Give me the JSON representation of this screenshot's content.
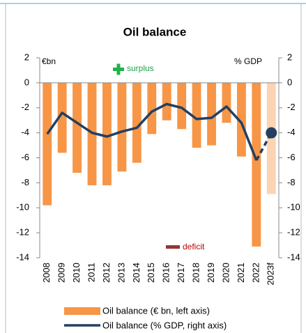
{
  "chart_data": {
    "type": "bar_line",
    "title": "Oil balance",
    "y_label": "€bn",
    "y2_label": "% GDP",
    "categories": [
      "2008",
      "2009",
      "2010",
      "2011",
      "2012",
      "2013",
      "2014",
      "2015",
      "2016",
      "2017",
      "2018",
      "2019",
      "2020",
      "2021",
      "2022",
      "2023f"
    ],
    "forecast": [
      false,
      false,
      false,
      false,
      false,
      false,
      false,
      false,
      false,
      false,
      false,
      false,
      false,
      false,
      false,
      true
    ],
    "series": [
      {
        "name": "Oil balance (€ bn, left axis)",
        "type": "bar",
        "color": "#f79646",
        "forecast_color": "#fbd4b4",
        "values": [
          -9.8,
          -5.6,
          -7.2,
          -8.2,
          -8.2,
          -7.1,
          -6.4,
          -4.1,
          -3.0,
          -3.7,
          -5.2,
          -5.0,
          -3.2,
          -5.9,
          -13.1,
          -8.9
        ]
      },
      {
        "name": "Oil balance (% GDP, right axis)",
        "type": "line",
        "axis": "y2",
        "color": "#243f60",
        "values": [
          -4.1,
          -2.4,
          -3.2,
          -4.0,
          -4.3,
          -3.9,
          -3.6,
          -2.3,
          -1.7,
          -2.0,
          -2.9,
          -2.8,
          -1.9,
          -3.2,
          -6.2,
          -4.0
        ]
      }
    ],
    "ylim": [
      -14,
      2
    ],
    "yticks": [
      2,
      0,
      -2,
      -4,
      -6,
      -8,
      -10,
      -12,
      -14
    ],
    "y2lim": [
      -14,
      2
    ],
    "y2ticks": [
      2,
      0,
      -2,
      -4,
      -6,
      -8,
      -10,
      -12,
      -14
    ],
    "annotations": [
      {
        "text": "surplus"
      },
      {
        "text": "deficit"
      }
    ]
  }
}
